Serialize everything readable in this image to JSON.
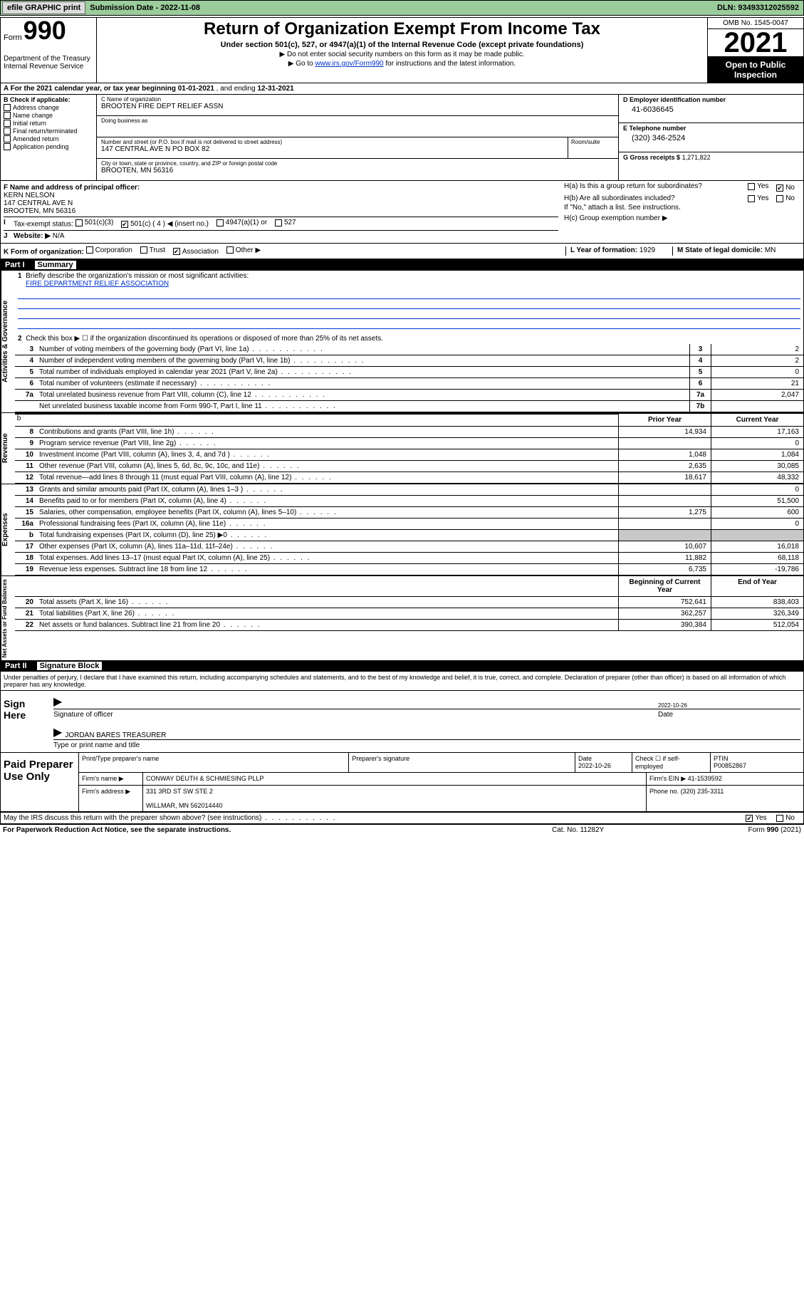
{
  "top": {
    "efile": "efile GRAPHIC print",
    "sub_label": "Submission Date - 2022-11-08",
    "dln": "DLN: 93493312025592"
  },
  "header": {
    "form_word": "Form",
    "form_num": "990",
    "title": "Return of Organization Exempt From Income Tax",
    "sub1": "Under section 501(c), 527, or 4947(a)(1) of the Internal Revenue Code (except private foundations)",
    "sub2": "▶ Do not enter social security numbers on this form as it may be made public.",
    "sub3_pre": "▶ Go to ",
    "sub3_link": "www.irs.gov/Form990",
    "sub3_post": " for instructions and the latest information.",
    "dept": "Department of the Treasury\nInternal Revenue Service",
    "omb": "OMB No. 1545-0047",
    "year": "2021",
    "open": "Open to Public Inspection"
  },
  "row_a": {
    "text_pre": "A For the 2021 calendar year, or tax year beginning ",
    "begin": "01-01-2021",
    "mid": " , and ending ",
    "end": "12-31-2021"
  },
  "col_b": {
    "label": "B Check if applicable:",
    "items": [
      "Address change",
      "Name change",
      "Initial return",
      "Final return/terminated",
      "Amended return",
      "Application pending"
    ]
  },
  "entity": {
    "c_name_lbl": "C Name of organization",
    "c_name": "BROOTEN FIRE DEPT RELIEF ASSN",
    "dba_lbl": "Doing business as",
    "dba": "",
    "addr_lbl": "Number and street (or P.O. box if mail is not delivered to street address)",
    "room_lbl": "Room/suite",
    "addr": "147 CENTRAL AVE N PO BOX 82",
    "city_lbl": "City or town, state or province, country, and ZIP or foreign postal code",
    "city": "BROOTEN, MN  56316",
    "d_lbl": "D Employer identification number",
    "d_val": "41-6036645",
    "e_lbl": "E Telephone number",
    "e_val": "(320) 346-2524",
    "g_lbl": "G Gross receipts $",
    "g_val": "1,271,822"
  },
  "f": {
    "lbl": "F Name and address of principal officer:",
    "name": "KERN NELSON",
    "addr1": "147 CENTRAL AVE N",
    "addr2": "BROOTEN, MN  56316"
  },
  "h": {
    "ha": "H(a)  Is this a group return for subordinates?",
    "hb": "H(b)  Are all subordinates included?",
    "hb_note": "If \"No,\" attach a list. See instructions.",
    "hc": "H(c)  Group exemption number ▶",
    "yes": "Yes",
    "no": "No"
  },
  "i": {
    "lbl": "Tax-exempt status:",
    "o501c3": "501(c)(3)",
    "o501c": "501(c) ( 4 ) ◀ (insert no.)",
    "o4947": "4947(a)(1) or",
    "o527": "527"
  },
  "j": {
    "lbl": "Website: ▶",
    "val": "N/A"
  },
  "k": {
    "lbl": "K Form of organization:",
    "corp": "Corporation",
    "trust": "Trust",
    "assoc": "Association",
    "other": "Other ▶",
    "l_lbl": "L Year of formation:",
    "l_val": "1929",
    "m_lbl": "M State of legal domicile:",
    "m_val": "MN"
  },
  "part1": {
    "num": "Part I",
    "title": "Summary"
  },
  "summary": {
    "sec1": "Activities & Governance",
    "sec2": "Revenue",
    "sec3": "Expenses",
    "sec4": "Net Assets or Fund Balances",
    "line1_lbl": "Briefly describe the organization's mission or most significant activities:",
    "line1_val": "FIRE DEPARTMENT RELIEF ASSOCIATION",
    "line2": "Check this box ▶ ☐  if the organization discontinued its operations or disposed of more than 25% of its net assets.",
    "prior": "Prior Year",
    "current": "Current Year",
    "begin": "Beginning of Current Year",
    "end": "End of Year",
    "rows_gov": [
      {
        "n": "3",
        "d": "Number of voting members of the governing body (Part VI, line 1a)",
        "c1": "3",
        "v": "2"
      },
      {
        "n": "4",
        "d": "Number of independent voting members of the governing body (Part VI, line 1b)",
        "c1": "4",
        "v": "2"
      },
      {
        "n": "5",
        "d": "Total number of individuals employed in calendar year 2021 (Part V, line 2a)",
        "c1": "5",
        "v": "0"
      },
      {
        "n": "6",
        "d": "Total number of volunteers (estimate if necessary)",
        "c1": "6",
        "v": "21"
      },
      {
        "n": "7a",
        "d": "Total unrelated business revenue from Part VIII, column (C), line 12",
        "c1": "7a",
        "v": "2,047"
      },
      {
        "n": "",
        "d": "Net unrelated business taxable income from Form 990-T, Part I, line 11",
        "c1": "7b",
        "v": ""
      }
    ],
    "rows_rev": [
      {
        "n": "8",
        "d": "Contributions and grants (Part VIII, line 1h)",
        "p": "14,934",
        "c": "17,163"
      },
      {
        "n": "9",
        "d": "Program service revenue (Part VIII, line 2g)",
        "p": "",
        "c": "0"
      },
      {
        "n": "10",
        "d": "Investment income (Part VIII, column (A), lines 3, 4, and 7d )",
        "p": "1,048",
        "c": "1,084"
      },
      {
        "n": "11",
        "d": "Other revenue (Part VIII, column (A), lines 5, 6d, 8c, 9c, 10c, and 11e)",
        "p": "2,635",
        "c": "30,085"
      },
      {
        "n": "12",
        "d": "Total revenue—add lines 8 through 11 (must equal Part VIII, column (A), line 12)",
        "p": "18,617",
        "c": "48,332"
      }
    ],
    "rows_exp": [
      {
        "n": "13",
        "d": "Grants and similar amounts paid (Part IX, column (A), lines 1–3 )",
        "p": "",
        "c": "0"
      },
      {
        "n": "14",
        "d": "Benefits paid to or for members (Part IX, column (A), line 4)",
        "p": "",
        "c": "51,500"
      },
      {
        "n": "15",
        "d": "Salaries, other compensation, employee benefits (Part IX, column (A), lines 5–10)",
        "p": "1,275",
        "c": "600"
      },
      {
        "n": "16a",
        "d": "Professional fundraising fees (Part IX, column (A), line 11e)",
        "p": "",
        "c": "0"
      },
      {
        "n": "b",
        "d": "Total fundraising expenses (Part IX, column (D), line 25) ▶0",
        "p": "grey",
        "c": "grey"
      },
      {
        "n": "17",
        "d": "Other expenses (Part IX, column (A), lines 11a–11d, 11f–24e)",
        "p": "10,607",
        "c": "16,018"
      },
      {
        "n": "18",
        "d": "Total expenses. Add lines 13–17 (must equal Part IX, column (A), line 25)",
        "p": "11,882",
        "c": "68,118"
      },
      {
        "n": "19",
        "d": "Revenue less expenses. Subtract line 18 from line 12",
        "p": "6,735",
        "c": "-19,786"
      }
    ],
    "rows_net": [
      {
        "n": "20",
        "d": "Total assets (Part X, line 16)",
        "p": "752,641",
        "c": "838,403"
      },
      {
        "n": "21",
        "d": "Total liabilities (Part X, line 26)",
        "p": "362,257",
        "c": "326,349"
      },
      {
        "n": "22",
        "d": "Net assets or fund balances. Subtract line 21 from line 20",
        "p": "390,384",
        "c": "512,054"
      }
    ]
  },
  "part2": {
    "num": "Part II",
    "title": "Signature Block"
  },
  "sig": {
    "intro": "Under penalties of perjury, I declare that I have examined this return, including accompanying schedules and statements, and to the best of my knowledge and belief, it is true, correct, and complete. Declaration of preparer (other than officer) is based on all information of which preparer has any knowledge.",
    "here": "Sign Here",
    "sig_lbl": "Signature of officer",
    "date_lbl": "Date",
    "date": "2022-10-26",
    "name": "JORDAN BARES TREASURER",
    "name_lbl": "Type or print name and title"
  },
  "prep": {
    "label": "Paid Preparer Use Only",
    "h_name": "Print/Type preparer's name",
    "h_sig": "Preparer's signature",
    "h_date": "Date",
    "date": "2022-10-26",
    "h_chk": "Check ☐ if self-employed",
    "h_ptin": "PTIN",
    "ptin": "P00852867",
    "firm_name_lbl": "Firm's name   ▶",
    "firm_name": "CONWAY DEUTH & SCHMIESING PLLP",
    "firm_ein_lbl": "Firm's EIN ▶",
    "firm_ein": "41-1539592",
    "firm_addr_lbl": "Firm's address ▶",
    "firm_addr": "331 3RD ST SW STE 2",
    "firm_city": "WILLMAR, MN  562014440",
    "phone_lbl": "Phone no.",
    "phone": "(320) 235-3311"
  },
  "may": {
    "text": "May the IRS discuss this return with the preparer shown above? (see instructions)",
    "yes": "Yes",
    "no": "No"
  },
  "footer": {
    "f1": "For Paperwork Reduction Act Notice, see the separate instructions.",
    "f2": "Cat. No. 11282Y",
    "f3": "Form 990 (2021)"
  }
}
